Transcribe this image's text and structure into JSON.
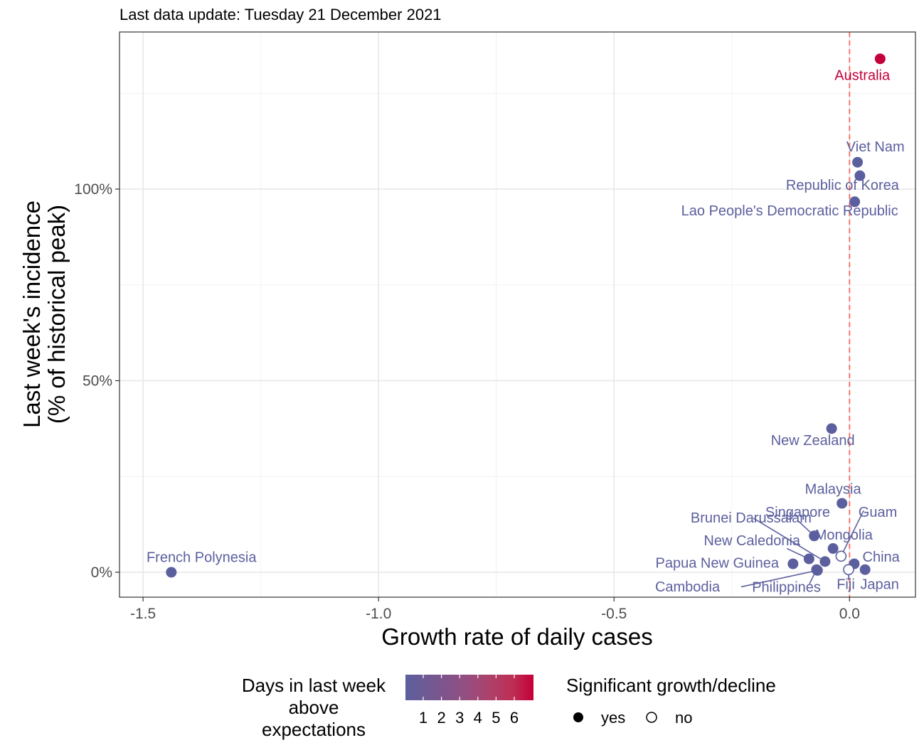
{
  "subtitle": "Last data update: Tuesday 21 December 2021",
  "chart_data": {
    "type": "scatter",
    "xlabel": "Growth rate of daily cases",
    "ylabel_line1": "Last week's incidence",
    "ylabel_line2": "(% of historical peak)",
    "xlim": [
      -1.55,
      0.14
    ],
    "ylim": [
      -6.5,
      141
    ],
    "x_ticks": [
      {
        "value": -1.5,
        "label": "-1.5"
      },
      {
        "value": -1.0,
        "label": "-1.0"
      },
      {
        "value": -0.5,
        "label": "-0.5"
      },
      {
        "value": 0.0,
        "label": "0.0"
      }
    ],
    "y_ticks": [
      {
        "value": 0,
        "label": "0%"
      },
      {
        "value": 50,
        "label": "50%"
      },
      {
        "value": 100,
        "label": "100%"
      }
    ],
    "x_minor": [
      -1.25,
      -0.75,
      -0.25
    ],
    "y_minor": [
      25,
      75,
      125
    ],
    "reference_line_x": 0.0,
    "reference_line_color": "#f8766d",
    "points": [
      {
        "name": "Australia",
        "x": 0.065,
        "y": 134,
        "days": 6,
        "significant": true,
        "color": "#c4003a",
        "label_x": 0.027,
        "label_y": 128.5,
        "anchor": "middle"
      },
      {
        "name": "Viet Nam",
        "x": 0.017,
        "y": 107,
        "days": 1,
        "significant": true,
        "color": "#5c5f9e",
        "label_x": 0.055,
        "label_y": 109.8,
        "anchor": "middle"
      },
      {
        "name": "Republic of Korea",
        "x": 0.022,
        "y": 103.5,
        "days": 1,
        "significant": true,
        "color": "#5c5f9e",
        "label_x": -0.015,
        "label_y": 99.8,
        "anchor": "middle"
      },
      {
        "name": "Lao People's Democratic Republic",
        "x": 0.011,
        "y": 96.7,
        "days": 1,
        "significant": true,
        "color": "#5c5f9e",
        "label_x": -0.127,
        "label_y": 93.1,
        "anchor": "middle"
      },
      {
        "name": "New Zealand",
        "x": -0.038,
        "y": 37.5,
        "days": 1,
        "significant": true,
        "color": "#5c5f9e",
        "label_x": -0.078,
        "label_y": 33.2,
        "anchor": "middle"
      },
      {
        "name": "Malaysia",
        "x": -0.016,
        "y": 18,
        "days": 1,
        "significant": true,
        "color": "#5c5f9e",
        "label_x": -0.035,
        "label_y": 20.5,
        "anchor": "middle"
      },
      {
        "name": "Singapore",
        "x": -0.075,
        "y": 9.5,
        "days": 1,
        "significant": true,
        "color": "#5c5f9e",
        "label_x": -0.11,
        "label_y": 14.5,
        "anchor": "middle"
      },
      {
        "name": "Guam",
        "x": -0.018,
        "y": 4.2,
        "days": 1,
        "significant": false,
        "color": "#5c5f9e",
        "label_x": 0.06,
        "label_y": 14.5,
        "anchor": "middle"
      },
      {
        "name": "Brunei Darussalam",
        "x": -0.052,
        "y": 2.8,
        "days": 1,
        "significant": true,
        "color": "#5c5f9e",
        "label_x": -0.209,
        "label_y": 13.0,
        "anchor": "middle"
      },
      {
        "name": "Mongolia",
        "x": -0.035,
        "y": 6.2,
        "days": 1,
        "significant": true,
        "color": "#5c5f9e",
        "label_x": -0.012,
        "label_y": 8.5,
        "anchor": "middle"
      },
      {
        "name": "New Caledonia",
        "x": -0.086,
        "y": 3.5,
        "days": 1,
        "significant": true,
        "color": "#5c5f9e",
        "label_x": -0.207,
        "label_y": 7.0,
        "anchor": "middle"
      },
      {
        "name": "China",
        "x": 0.01,
        "y": 2.2,
        "days": 1,
        "significant": true,
        "color": "#5c5f9e",
        "label_x": 0.067,
        "label_y": 2.8,
        "anchor": "middle"
      },
      {
        "name": "Papua New Guinea",
        "x": -0.12,
        "y": 2.2,
        "days": 1,
        "significant": true,
        "color": "#5c5f9e",
        "label_x": -0.281,
        "label_y": 1.2,
        "anchor": "middle"
      },
      {
        "name": "French Polynesia",
        "x": -1.44,
        "y": 0,
        "days": 1,
        "significant": true,
        "color": "#5c5f9e",
        "label_x": -1.376,
        "label_y": 2.7,
        "anchor": "middle"
      },
      {
        "name": "Philippines",
        "x": -0.07,
        "y": 0.7,
        "days": 1,
        "significant": true,
        "color": "#5c5f9e",
        "label_x": -0.134,
        "label_y": -5.1,
        "anchor": "middle"
      },
      {
        "name": "Fiji",
        "x": -0.002,
        "y": 0.7,
        "days": 1,
        "significant": false,
        "color": "#5c5f9e",
        "label_x": -0.008,
        "label_y": -4.4,
        "anchor": "middle"
      },
      {
        "name": "Japan",
        "x": 0.033,
        "y": 0.7,
        "days": 1,
        "significant": true,
        "color": "#5c5f9e",
        "label_x": 0.064,
        "label_y": -4.4,
        "anchor": "middle"
      },
      {
        "name": "Cambodia",
        "x": -0.068,
        "y": 0.5,
        "days": 1,
        "significant": true,
        "color": "#5c5f9e",
        "label_x": -0.344,
        "label_y": -5.0,
        "anchor": "middle"
      }
    ],
    "leader_lines": [
      {
        "from": "Guam",
        "x1": -0.018,
        "y1": 4.2,
        "x2": 0.03,
        "y2": 16.1
      },
      {
        "from": "Brunei Darussalam",
        "x1": -0.052,
        "y1": 2.8,
        "x2": -0.204,
        "y2": 14.1
      },
      {
        "from": "Singapore",
        "x1": -0.075,
        "y1": 9.5,
        "x2": -0.108,
        "y2": 13.3
      },
      {
        "from": "New Caledonia",
        "x1": -0.086,
        "y1": 3.5,
        "x2": -0.133,
        "y2": 6.2
      },
      {
        "from": "Cambodia",
        "x1": -0.068,
        "y1": 0.5,
        "x2": -0.23,
        "y2": -3.8
      },
      {
        "from": "Philippines",
        "x1": -0.07,
        "y1": 0.7,
        "x2": -0.085,
        "y2": -3.0
      },
      {
        "from": "Fiji",
        "x1": -0.002,
        "y1": 0.7,
        "x2": -0.002,
        "y2": -2.0
      }
    ],
    "legend": {
      "color_title_lines": [
        "Days in last week",
        "above",
        "expectations"
      ],
      "color_scale": [
        "#5c5f9e",
        "#6f5a93",
        "#82538a",
        "#984d7e",
        "#ad4069",
        "#bd2f55",
        "#c4003a"
      ],
      "color_labels": [
        "1",
        "2",
        "3",
        "4",
        "5",
        "6"
      ],
      "shape_title": "Significant growth/decline",
      "shape_items": [
        {
          "label": "yes",
          "filled": true
        },
        {
          "label": "no",
          "filled": false
        }
      ],
      "position": "bottom"
    }
  }
}
